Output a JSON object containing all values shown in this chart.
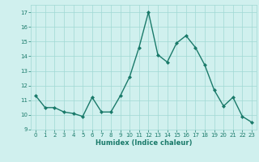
{
  "x": [
    0,
    1,
    2,
    3,
    4,
    5,
    6,
    7,
    8,
    9,
    10,
    11,
    12,
    13,
    14,
    15,
    16,
    17,
    18,
    19,
    20,
    21,
    22,
    23
  ],
  "y": [
    11.3,
    10.5,
    10.5,
    10.2,
    10.1,
    9.9,
    11.2,
    10.2,
    10.2,
    11.3,
    12.6,
    14.6,
    17.0,
    14.1,
    13.6,
    14.9,
    15.4,
    14.6,
    13.4,
    11.7,
    10.6,
    11.2,
    9.9,
    9.5
  ],
  "xlabel": "Humidex (Indice chaleur)",
  "ylim": [
    9,
    17.5
  ],
  "yticks": [
    9,
    10,
    11,
    12,
    13,
    14,
    15,
    16,
    17
  ],
  "xticks": [
    0,
    1,
    2,
    3,
    4,
    5,
    6,
    7,
    8,
    9,
    10,
    11,
    12,
    13,
    14,
    15,
    16,
    17,
    18,
    19,
    20,
    21,
    22,
    23
  ],
  "line_color": "#1a7a6a",
  "marker_color": "#1a7a6a",
  "bg_color": "#d0f0ee",
  "grid_color": "#a0d8d4",
  "tick_color": "#1a7a6a",
  "xlabel_fontsize": 6.0,
  "tick_fontsize": 5.0,
  "linewidth": 1.0,
  "markersize": 2.0,
  "xlim": [
    -0.5,
    23.5
  ]
}
